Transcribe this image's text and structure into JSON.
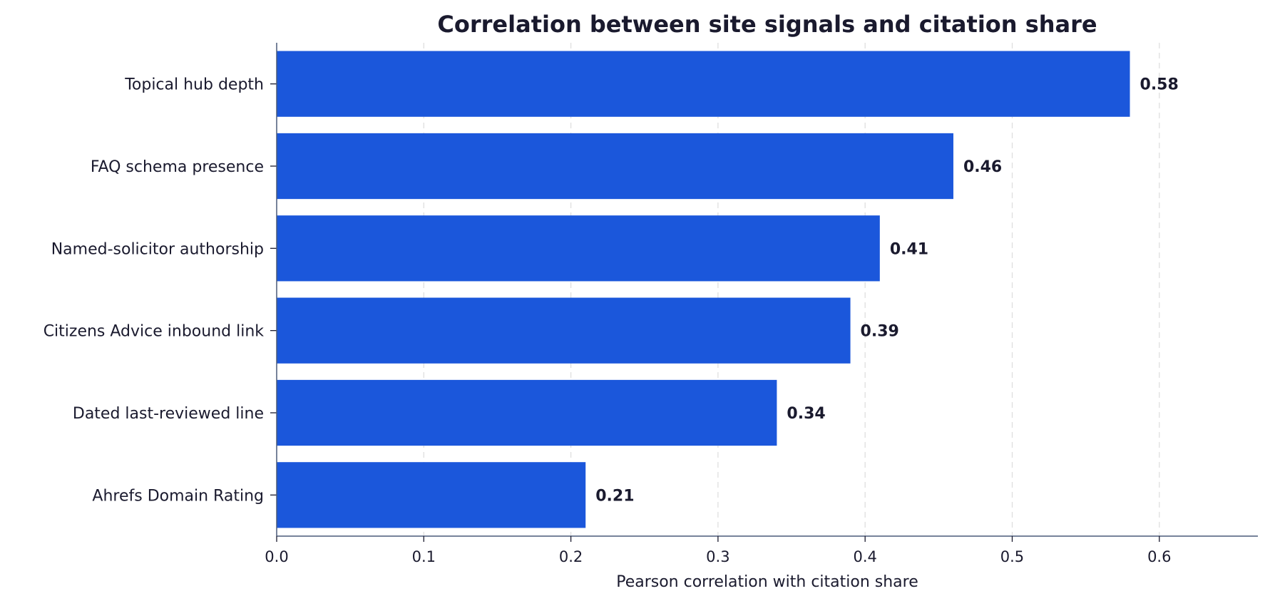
{
  "chart_data": {
    "type": "bar",
    "orientation": "horizontal",
    "title": "Correlation between site signals and citation share",
    "xlabel": "Pearson correlation with citation share",
    "ylabel": "",
    "xlim": [
      0,
      0.667
    ],
    "xticks": [
      "0.0",
      "0.1",
      "0.2",
      "0.3",
      "0.4",
      "0.5",
      "0.6"
    ],
    "xtick_values": [
      0,
      0.1,
      0.2,
      0.3,
      0.4,
      0.5,
      0.6
    ],
    "grid": true,
    "categories": [
      "Topical hub depth",
      "FAQ schema presence",
      "Named-solicitor authorship",
      "Citizens Advice inbound link",
      "Dated last-reviewed line",
      "Ahrefs Domain Rating"
    ],
    "values": [
      0.58,
      0.46,
      0.41,
      0.39,
      0.34,
      0.21
    ],
    "value_labels": [
      "0.58",
      "0.46",
      "0.41",
      "0.39",
      "0.34",
      "0.21"
    ],
    "colors": {
      "bar": "#1b57db"
    }
  }
}
